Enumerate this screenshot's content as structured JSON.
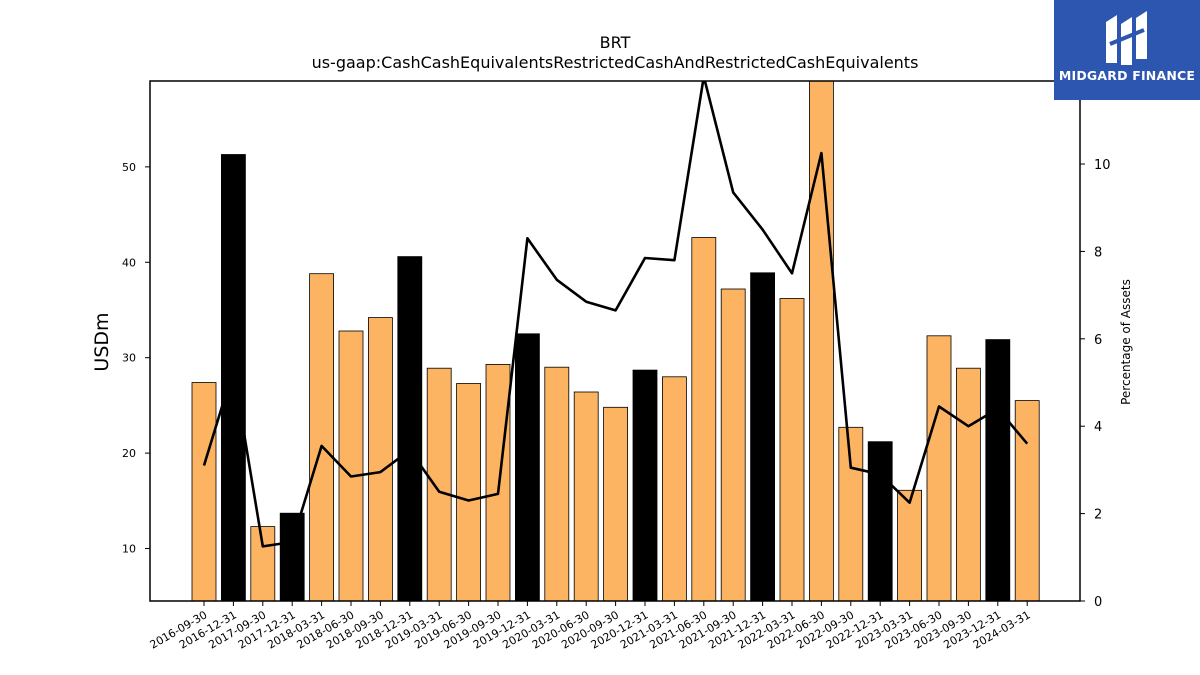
{
  "logo": {
    "text": "MIDGARD FINANCE",
    "color": "#2c56b0"
  },
  "chart_data": {
    "type": "bar",
    "title": "BRT",
    "subtitle": "us-gaap:CashCashEquivalentsRestrictedCashAndRestrictedCashEquivalents",
    "ylabel": "USDm",
    "y2label": "Percentage of Assets",
    "ylim": [
      4.5,
      59
    ],
    "y2lim": [
      0,
      11.9
    ],
    "yticks": [
      10,
      20,
      30,
      40,
      50
    ],
    "y2ticks": [
      0,
      2,
      4,
      6,
      8,
      10
    ],
    "categories": [
      "2016-09-30",
      "2016-12-31",
      "2017-09-30",
      "2017-12-31",
      "2018-03-31",
      "2018-06-30",
      "2018-09-30",
      "2018-12-31",
      "2019-03-31",
      "2019-06-30",
      "2019-09-30",
      "2019-12-31",
      "2020-03-31",
      "2020-06-30",
      "2020-09-30",
      "2020-12-31",
      "2021-03-31",
      "2021-06-30",
      "2021-09-30",
      "2021-12-31",
      "2022-03-31",
      "2022-06-30",
      "2022-09-30",
      "2022-12-31",
      "2023-03-31",
      "2023-06-30",
      "2023-09-30",
      "2023-12-31",
      "2024-03-31"
    ],
    "series": [
      {
        "type": "bar",
        "values": [
          27.4,
          51.3,
          12.3,
          13.7,
          38.8,
          32.8,
          34.2,
          40.6,
          28.9,
          27.3,
          29.3,
          32.5,
          29.0,
          26.4,
          24.8,
          28.7,
          28.0,
          42.6,
          37.2,
          38.9,
          36.2,
          59.0,
          22.7,
          21.2,
          16.1,
          32.3,
          28.9,
          31.9,
          25.5
        ]
      },
      {
        "type": "line",
        "axis": "secondary",
        "values": [
          3.1,
          5.3,
          1.25,
          1.35,
          3.55,
          2.85,
          2.95,
          3.45,
          2.5,
          2.3,
          2.45,
          8.3,
          7.35,
          6.85,
          6.65,
          7.85,
          7.8,
          12.0,
          9.35,
          8.5,
          7.5,
          10.25,
          3.05,
          2.9,
          2.25,
          4.45,
          4.0,
          4.4,
          3.6
        ]
      }
    ],
    "bar_colors": [
      "#fdb462",
      "#000000",
      "#fdb462",
      "#000000",
      "#fdb462",
      "#fdb462",
      "#fdb462",
      "#000000",
      "#fdb462",
      "#fdb462",
      "#fdb462",
      "#000000",
      "#fdb462",
      "#fdb462",
      "#fdb462",
      "#000000",
      "#fdb462",
      "#fdb462",
      "#fdb462",
      "#000000",
      "#fdb462",
      "#fdb462",
      "#fdb462",
      "#000000",
      "#fdb462",
      "#fdb462",
      "#fdb462",
      "#000000",
      "#fdb462"
    ],
    "line_color": "#000000",
    "grid": false
  }
}
